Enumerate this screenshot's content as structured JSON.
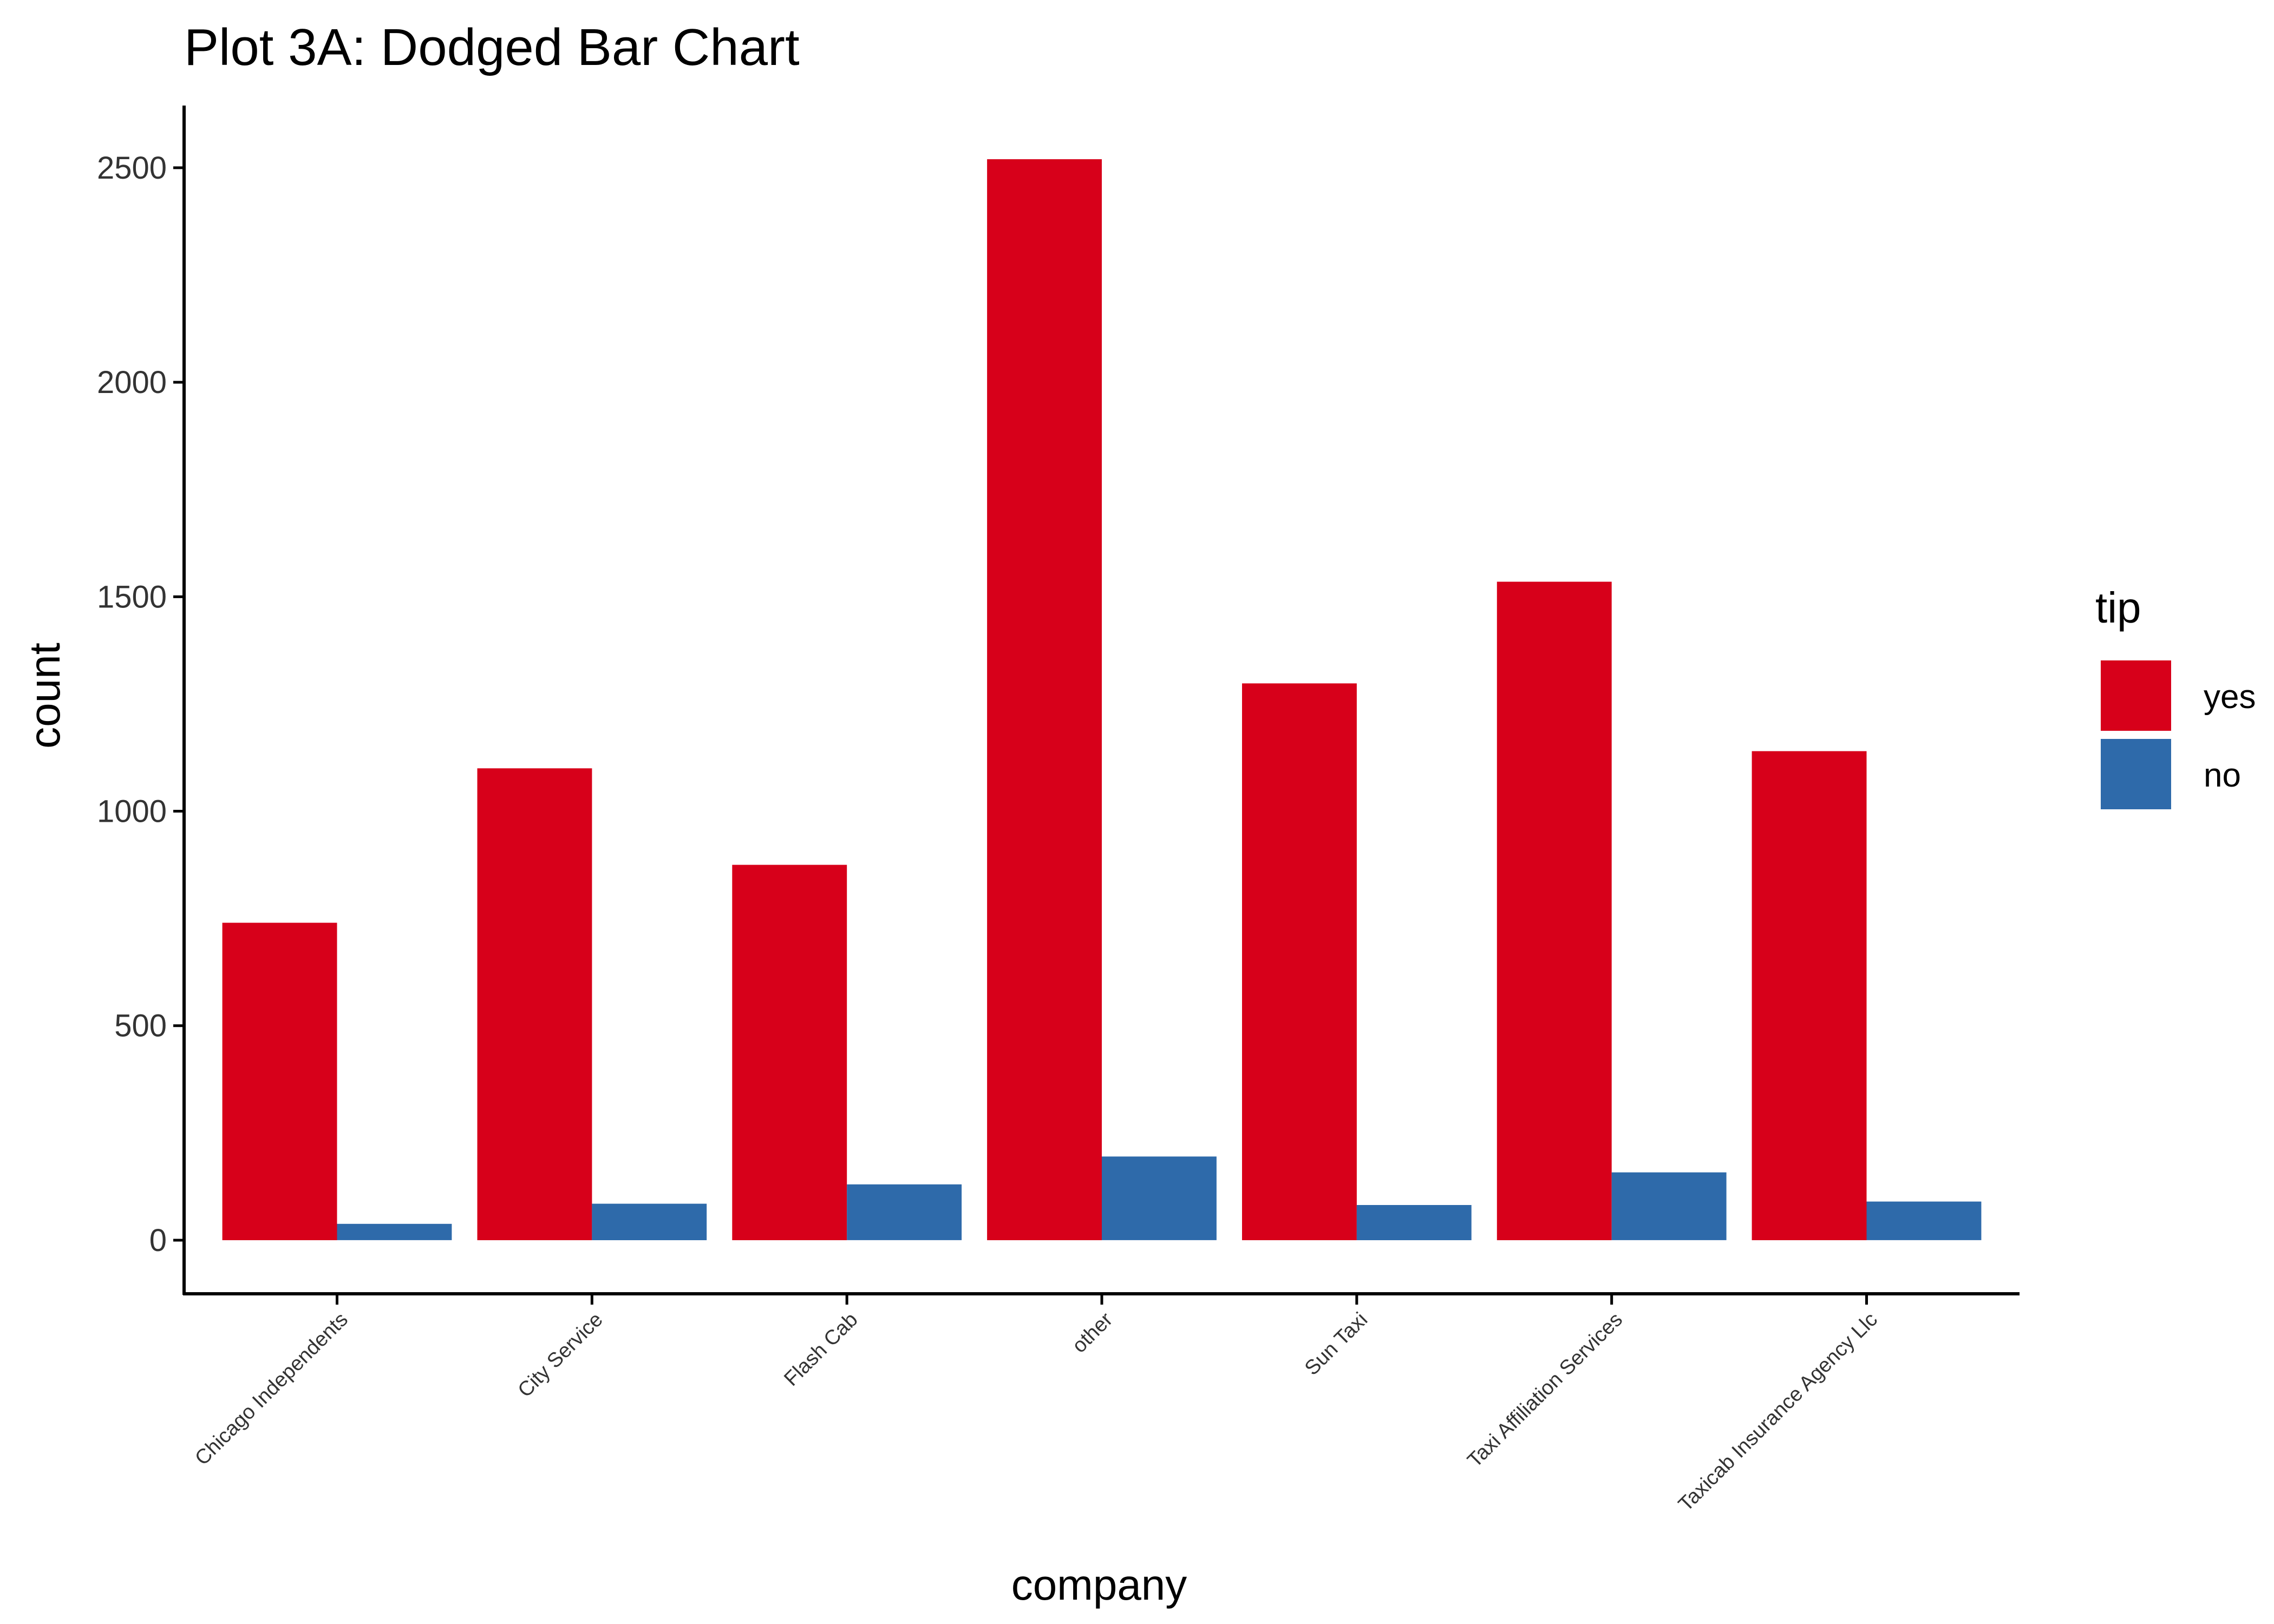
{
  "chart_data": {
    "type": "bar",
    "title": "Plot 3A: Dodged Bar Chart",
    "xlabel": "company",
    "ylabel": "count",
    "categories": [
      "Chicago Independents",
      "City Service",
      "Flash Cab",
      "other",
      "Sun Taxi",
      "Taxi Affiliation Services",
      "Taxicab Insurance Agency Llc"
    ],
    "series": [
      {
        "name": "yes",
        "color": "#D7001A",
        "values": [
          740,
          1100,
          875,
          2520,
          1298,
          1535,
          1140
        ]
      },
      {
        "name": "no",
        "color": "#2E6AAA",
        "values": [
          38,
          85,
          130,
          195,
          82,
          158,
          90
        ]
      }
    ],
    "yticks": [
      0,
      500,
      1000,
      1500,
      2000,
      2500
    ],
    "ylim": [
      -125,
      2645
    ],
    "legend": {
      "title": "tip",
      "position": "right"
    },
    "grid": false
  }
}
